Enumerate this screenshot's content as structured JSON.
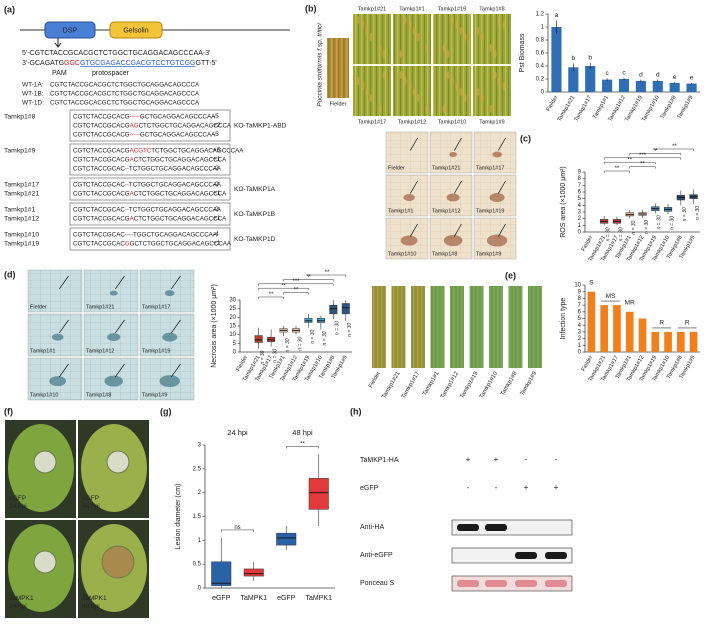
{
  "panels": {
    "a": {
      "label": "(a)",
      "domains": [
        "DSP",
        "Gelsolin"
      ],
      "seq_top": [
        "5'-CGTCTACCGCACGCTCTGGCTGCAGGACAGCCCAA-3'"
      ],
      "seq_bottom": [
        {
          "text": "3'-GCAGATG"
        },
        {
          "text": "GGC",
          "color": "#e02020"
        },
        {
          "text": "GTGCGAGACCGACGTCCTGTCGG",
          "color": "#2a5fc8"
        },
        {
          "text": "GTT-5'"
        }
      ],
      "pam": "PAM",
      "protospacer": "protospacer",
      "wt": [
        {
          "name": "WT-1A:",
          "seq": "CGTCTACCGCACGCTCTGGCTGCAGGACAGCCCA"
        },
        {
          "name": "WT-1B:",
          "seq": "CGTCTACCGCACGCTCTGGCTGCAGGACAGCCCA"
        },
        {
          "name": "WT-1D:",
          "seq": "CGTCTACCGCACGCTCTGGCTGCAGGACAGCCCA"
        }
      ],
      "groups": [
        {
          "ko": "KO-TaMKP1-ABD",
          "rows": [
            {
              "name": "Tamkp1#8",
              "parts": [
                "CGTCTACCGCACG",
                "-----",
                "GCTGCAGGACAGCCCAA"
              ],
              "indel": "-5"
            },
            {
              "parts": [
                "CGTCTACCGCACG",
                "AG",
                "CTCTGGCTGCAGGACAGCCCA"
              ],
              "indel": "+2"
            },
            {
              "parts": [
                "CGTCTACCGCACG",
                "-----",
                "GCTGCAGGACAGCCCAA"
              ],
              "indel": "-5"
            }
          ]
        },
        {
          "ko": "",
          "rows": [
            {
              "name": "Tamkp1#9",
              "parts": [
                "CGTCTACCGCACG",
                "ACGTC",
                "TCTGGCTGCAGGACAGCCCAA"
              ],
              "indel": "+5"
            },
            {
              "parts": [
                "CGTCTACCGCACG",
                "A",
                "CTCTGGCTGCAGGACAGCCCA"
              ],
              "indel": "+1"
            },
            {
              "parts": [
                "CGTCTACCGCAC",
                "--",
                "TCTGGCTGCAGGACAGCCCAA"
              ],
              "indel": "-2"
            }
          ]
        },
        {
          "ko": "KO-TaMKP1A",
          "rows": [
            {
              "name": "Tamkp1#17",
              "parts": [
                "CGTCTACCGCAC",
                "--",
                "TCTGGCTGCAGGACAGCCCAA"
              ],
              "indel": "-2"
            },
            {
              "name": "Tamkp1#21",
              "parts": [
                "CGTCTACCGCACG",
                "A",
                "CTCTGGCTGCAGGACAGCCCA"
              ],
              "indel": "+1"
            }
          ]
        },
        {
          "ko": "KO-TaMKP1B",
          "rows": [
            {
              "name": "Tamkp1#1",
              "parts": [
                "CGTCTACCGCAC",
                "--",
                "TCTGGCTGCAGGACAGCCCAA"
              ],
              "indel": "-2"
            },
            {
              "name": "Tamkp1#12",
              "parts": [
                "CGTCTACCGCACG",
                "A",
                "CTCTGGCTGCAGGACAGCCCA"
              ],
              "indel": "+1"
            }
          ]
        },
        {
          "ko": "KO-TaMKP1D",
          "rows": [
            {
              "name": "Tamkp1#10",
              "parts": [
                "CGTCTACCGCAC",
                "----",
                "TGGCTGCAGGACAGCCCAA"
              ],
              "indel": "-4"
            },
            {
              "name": "Tamkp1#19",
              "parts": [
                "CGTCTACCGCAC",
                "G",
                "GCTCTGGCTGCAGGACAGCCCAA"
              ],
              "indel": "+1"
            }
          ]
        }
      ]
    },
    "b": {
      "label": "(b)",
      "pathogen": "Puccinia striiformis f.sp. tritici",
      "fielder": "Fielder",
      "top": [
        "Tamkp1#21",
        "Tamkp1#1",
        "Tamkp1#19",
        "Tamkp1#8"
      ],
      "bottom": [
        "Tamkp1#17",
        "Tamkp1#12",
        "Tamkp1#10",
        "Tamkp1#9"
      ]
    },
    "c": {
      "label": "(c)",
      "images": [
        "Fielder",
        "Tamkp1#21",
        "Tamkp1#17",
        "Tamkp1#1",
        "Tamkp1#12",
        "Tamkp1#19",
        "Tamkp1#10",
        "Tamkp1#8",
        "Tamkp1#9"
      ]
    },
    "d": {
      "label": "(d)",
      "images": [
        "Fielder",
        "Tamkp1#21",
        "Tamkp1#17",
        "Tamkp1#1",
        "Tamkp1#12",
        "Tamkp1#19",
        "Tamkp1#10",
        "Tamkp1#8",
        "Tamkp1#9"
      ]
    },
    "e": {
      "label": "(e)",
      "leaves": [
        "Fielder",
        "Tamkp1#21",
        "Tamkp1#17",
        "Tamkp1#1",
        "Tamkp1#12",
        "Tamkp1#19",
        "Tamkp1#10",
        "Tamkp1#8",
        "Tamkp1#9"
      ]
    },
    "f": {
      "label": "(f)",
      "photos": [
        {
          "line1": "eGFP",
          "line2": "24 hpi"
        },
        {
          "line1": "eGFP",
          "line2": "48 hpi"
        },
        {
          "line1": "TaMPK1",
          "line2": "24 hpi"
        },
        {
          "line1": "TaMPK1",
          "line2": "48 hpi"
        }
      ]
    },
    "g": {
      "label": "(g)"
    },
    "h": {
      "label": "(h)",
      "treatments": [
        {
          "name": "TaMKP1-HA",
          "signs": [
            "+",
            "+",
            "-",
            "-"
          ]
        },
        {
          "name": "eGFP",
          "signs": [
            "-",
            "-",
            "+",
            "+"
          ]
        }
      ],
      "blots": [
        "Anti-HA",
        "Anti-eGFP",
        "Ponceau S"
      ]
    }
  },
  "chart_data": [
    {
      "type": "bar",
      "y_label": "Pst Biomass",
      "color": "#2f6eb5",
      "categories": [
        "Fielder",
        "Tamkp1#21",
        "Tamkp1#17",
        "Tamkp1#1",
        "Tamkp1#12",
        "Tamkp1#19",
        "Tamkp1#10",
        "Tamkp1#8",
        "Tamkp1#9"
      ],
      "values": [
        1,
        0.38,
        0.4,
        0.19,
        0.2,
        0.17,
        0.17,
        0.14,
        0.13
      ],
      "errors": [
        0.1,
        0.06,
        0.05,
        0.02,
        0.02,
        0.02,
        0.02,
        0.01,
        0.01
      ],
      "letters": [
        "a",
        "b",
        "b",
        "c",
        "c",
        "d",
        "d",
        "e",
        "e"
      ],
      "ylim": [
        0,
        1.2
      ],
      "yticks": [
        0,
        0.2,
        0.4,
        0.6,
        0.8,
        1,
        1.2
      ]
    },
    {
      "type": "box",
      "y_label": "ROS area (×1000 µm²)",
      "categories": [
        "Fielder",
        "Tamkp1#21",
        "Tamkp1#17",
        "Tamkp1#1",
        "Tamkp1#12",
        "Tamkp1#19",
        "Tamkp1#10",
        "Tamkp1#8",
        "Tamkp1#9"
      ],
      "min": [
        null,
        1.0,
        1.0,
        2.0,
        2.1,
        2.8,
        2.7,
        4.0,
        4.2
      ],
      "q1": [
        null,
        1.3,
        1.3,
        2.4,
        2.5,
        3.2,
        3.1,
        4.8,
        5.0
      ],
      "median": [
        null,
        1.6,
        1.6,
        2.6,
        2.7,
        3.5,
        3.4,
        5.2,
        5.3
      ],
      "q3": [
        null,
        1.9,
        1.9,
        2.9,
        2.9,
        3.8,
        3.7,
        5.5,
        5.6
      ],
      "max": [
        null,
        2.4,
        2.3,
        3.3,
        3.3,
        4.3,
        4.2,
        6.2,
        6.4
      ],
      "colors": [
        null,
        "#b5473a",
        "#b5473a",
        "#e8b48a",
        "#e8b48a",
        "#3f86a8",
        "#3f86a8",
        "#2d4f7c",
        "#2d4f7c"
      ],
      "n_labels": [
        null,
        "n = 30",
        "n = 30",
        "n = 30",
        "n = 30",
        "n = 30",
        "n = 30",
        "n = 30",
        "n = 30"
      ],
      "significance": [
        {
          "text": "**",
          "between": [
            "Tamkp1#19",
            "Tamkp1#9"
          ]
        },
        {
          "text": "**",
          "between": [
            "Tamkp1#1",
            "Tamkp1#8"
          ]
        },
        {
          "text": "***",
          "between": [
            "Tamkp1#21",
            "Tamkp1#8"
          ]
        },
        {
          "text": "**",
          "between": [
            "Tamkp1#21",
            "Tamkp1#19"
          ]
        },
        {
          "text": "**",
          "between": [
            "Tamkp1#1",
            "Tamkp1#19"
          ]
        },
        {
          "text": "**",
          "between": [
            "Tamkp1#21",
            "Tamkp1#1"
          ]
        }
      ],
      "ylim": [
        0,
        9
      ],
      "yticks": [
        0,
        1,
        2,
        3,
        4,
        5,
        6,
        7,
        8,
        9
      ]
    },
    {
      "type": "box",
      "y_label": "Necrosis area (×1000 µm²)",
      "categories": [
        "Fielder",
        "Tamkp1#21",
        "Tamkp1#17",
        "Tamkp1#1",
        "Tamkp1#12",
        "Tamkp1#19",
        "Tamkp1#10",
        "Tamkp1#8",
        "Tamkp1#9"
      ],
      "min": [
        null,
        2,
        3,
        9,
        10,
        14,
        13,
        19,
        18
      ],
      "q1": [
        null,
        5.5,
        6,
        11.5,
        11.5,
        17,
        17,
        22,
        22
      ],
      "median": [
        null,
        7,
        7,
        12.5,
        12.5,
        18,
        18,
        25,
        25.5
      ],
      "q3": [
        null,
        9.5,
        8.5,
        13.5,
        13.5,
        19.5,
        19.5,
        27,
        28
      ],
      "max": [
        null,
        14,
        13,
        15,
        15,
        22,
        21,
        30,
        30
      ],
      "colors": [
        null,
        "#b83a2e",
        "#b83a2e",
        "#f0c8a6",
        "#f0c8a6",
        "#4a9cc0",
        "#4a9cc0",
        "#2e5580",
        "#2e5580"
      ],
      "n_labels": [
        null,
        "n = 30",
        "n = 30",
        "n = 30",
        "n = 30",
        "n = 30",
        "n = 30",
        "n = 30",
        "n = 30"
      ],
      "significance": [
        {
          "text": "**",
          "between": [
            "Tamkp1#19",
            "Tamkp1#9"
          ]
        },
        {
          "text": "**",
          "between": [
            "Tamkp1#1",
            "Tamkp1#8"
          ]
        },
        {
          "text": "***",
          "between": [
            "Tamkp1#21",
            "Tamkp1#8"
          ]
        },
        {
          "text": "**",
          "between": [
            "Tamkp1#21",
            "Tamkp1#19"
          ]
        },
        {
          "text": "**",
          "between": [
            "Tamkp1#1",
            "Tamkp1#19"
          ]
        },
        {
          "text": "**",
          "between": [
            "Tamkp1#21",
            "Tamkp1#1"
          ]
        }
      ],
      "ylim": [
        0,
        30
      ],
      "yticks": [
        0,
        5,
        10,
        15,
        20,
        25,
        30
      ]
    },
    {
      "type": "bar",
      "y_label": "Infection type",
      "color": "#f07f1e",
      "categories": [
        "Fielder",
        "Tamkp1#21",
        "Tamkp1#17",
        "Tamkp1#1",
        "Tamkp1#12",
        "Tamkp1#19",
        "Tamkp1#10",
        "Tamkp1#8",
        "Tamkp1#9"
      ],
      "values": [
        9,
        7,
        7,
        6,
        5,
        3,
        3,
        3,
        3
      ],
      "annotations": [
        {
          "text": "S",
          "between": [
            "Fielder",
            "Fielder"
          ]
        },
        {
          "text": "MS",
          "between": [
            "Tamkp1#21",
            "Tamkp1#17"
          ]
        },
        {
          "text": "MR",
          "between": [
            "Tamkp1#1",
            "Tamkp1#1"
          ]
        },
        {
          "text": "R",
          "between": [
            "Tamkp1#19",
            "Tamkp1#10"
          ]
        },
        {
          "text": "R",
          "between": [
            "Tamkp1#8",
            "Tamkp1#9"
          ]
        }
      ],
      "ylim": [
        0,
        10
      ],
      "yticks": [
        0,
        1,
        2,
        3,
        4,
        5,
        6,
        7,
        8,
        9,
        10
      ]
    },
    {
      "type": "box",
      "y_label": "Lesion diameter (cm)",
      "categories": [
        "eGFP",
        "TaMPK1",
        "eGFP",
        "TaMPK1"
      ],
      "groups": [
        "24 hpi",
        "48 hpi"
      ],
      "min": [
        0,
        0.15,
        0.8,
        1.3
      ],
      "q1": [
        0.05,
        0.25,
        0.9,
        1.65
      ],
      "median": [
        0.1,
        0.3,
        1.05,
        2.0
      ],
      "q3": [
        0.55,
        0.4,
        1.15,
        2.3
      ],
      "max": [
        1.05,
        0.55,
        1.3,
        2.8
      ],
      "colors": [
        "#2a62a8",
        "#e23a3a",
        "#2a62a8",
        "#e23a3a"
      ],
      "significance": [
        {
          "text": "ns",
          "group": "24 hpi"
        },
        {
          "text": "**",
          "group": "48 hpi"
        }
      ],
      "ylim": [
        0,
        3
      ],
      "yticks": [
        0,
        0.5,
        1,
        1.5,
        2,
        2.5,
        3
      ]
    }
  ]
}
